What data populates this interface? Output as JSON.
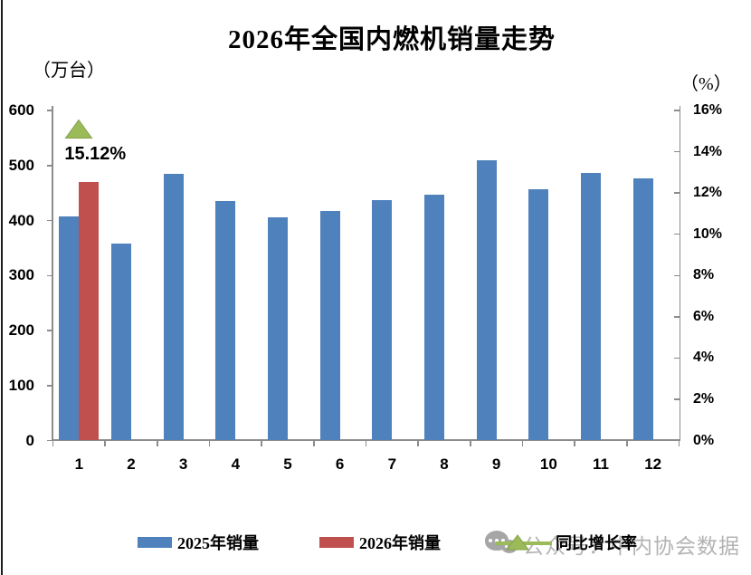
{
  "title": "2026年全国内燃机销量走势",
  "left_axis_unit": "（万台）",
  "right_axis_unit": "（%）",
  "legend": [
    {
      "label": "2025年销量",
      "marker": "bar-swatch",
      "color": "#4F81BD"
    },
    {
      "label": "2026年销量",
      "marker": "bar-swatch",
      "color": "#C0504D"
    },
    {
      "label": "同比增长率",
      "marker": "triangle-line-marker",
      "color": "#9BBB59"
    }
  ],
  "watermark": {
    "icon": "wechat-icon",
    "text": "公众号：中内协会数据"
  },
  "colors": {
    "bar_2025": "#4F81BD",
    "bar_2026": "#C0504D",
    "growth_marker": "#9BBB59",
    "growth_marker_edge": "#84A24A",
    "axis": "#8c8c8c",
    "watermark_gray": "#b3b3b3"
  },
  "chart_data": {
    "type": "bar",
    "title": "2026年全国内燃机销量走势",
    "categories": [
      "1",
      "2",
      "3",
      "4",
      "5",
      "6",
      "7",
      "8",
      "9",
      "10",
      "11",
      "12"
    ],
    "series": [
      {
        "name": "2025年销量",
        "axis": "left",
        "color": "#4F81BD",
        "values": [
          408,
          358,
          484,
          435,
          405,
          418,
          437,
          447,
          509,
          456,
          487,
          477
        ]
      },
      {
        "name": "2026年销量",
        "axis": "left",
        "color": "#C0504D",
        "values": [
          470,
          null,
          null,
          null,
          null,
          null,
          null,
          null,
          null,
          null,
          null,
          null
        ]
      }
    ],
    "markers": [
      {
        "series": "同比增长率",
        "category": "1",
        "value_pct": 15.12,
        "label": "15.12%",
        "shape": "triangle",
        "color": "#9BBB59"
      }
    ],
    "left_axis": {
      "label": "（万台）",
      "min": 0,
      "max": 600,
      "step": 100,
      "tick_labels": [
        "600",
        "500",
        "400",
        "300",
        "200",
        "100",
        "0"
      ]
    },
    "right_axis": {
      "label": "（%）",
      "min": 0,
      "max": 16,
      "step": 2,
      "tick_labels": [
        "16%",
        "14%",
        "12%",
        "10%",
        "8%",
        "6%",
        "4%",
        "2%",
        "0%"
      ]
    },
    "x_axis": {
      "tick_labels": [
        "1",
        "2",
        "3",
        "4",
        "5",
        "6",
        "7",
        "8",
        "9",
        "10",
        "11",
        "12"
      ]
    },
    "grid": false,
    "legend_position": "bottom"
  }
}
